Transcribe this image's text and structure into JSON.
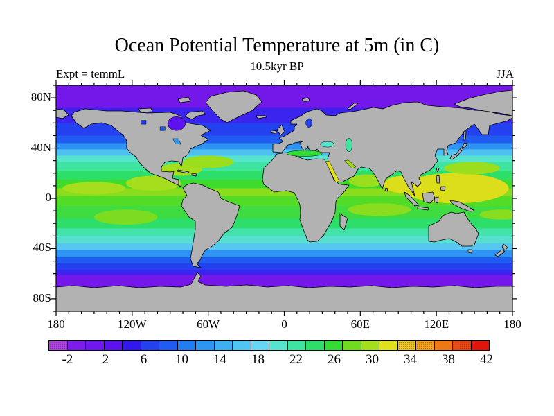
{
  "title": "Ocean Potential Temperature at 5m (in C)",
  "subtitle": "10.5kyr BP",
  "experiment_label": "Expt = temmL",
  "season_label": "JJA",
  "axes": {
    "lon_ticks": [
      {
        "lon": -180,
        "label": "180"
      },
      {
        "lon": -120,
        "label": "120W"
      },
      {
        "lon": -60,
        "label": "60W"
      },
      {
        "lon": 0,
        "label": "0"
      },
      {
        "lon": 60,
        "label": "60E"
      },
      {
        "lon": 120,
        "label": "120E"
      },
      {
        "lon": 180,
        "label": "180"
      }
    ],
    "lat_ticks": [
      {
        "lat": 80,
        "label": "80N"
      },
      {
        "lat": 40,
        "label": "40N"
      },
      {
        "lat": 0,
        "label": "0"
      },
      {
        "lat": -40,
        "label": "40S"
      },
      {
        "lat": -80,
        "label": "80S"
      }
    ],
    "minor_tick_step_deg": 10,
    "lon_major_step_deg": 60,
    "lat_major_step_deg": 40
  },
  "colorbar": {
    "labels": [
      "-2",
      "2",
      "6",
      "10",
      "14",
      "18",
      "22",
      "26",
      "30",
      "34",
      "38",
      "42"
    ],
    "cell_colors": [
      "#AC46DC",
      "#7E1CEC",
      "#6F17EE",
      "#5C12EE",
      "#3318EE",
      "#2441F0",
      "#215CF2",
      "#237CF2",
      "#2C97F2",
      "#3DAFF2",
      "#50C4F2",
      "#68D6F4",
      "#57E4CE",
      "#3FE4A0",
      "#2EDE6A",
      "#32DC32",
      "#6FDC1E",
      "#A5DE1C",
      "#E0E01C",
      "#EAC32A",
      "#F0A01E",
      "#F07814",
      "#E84814",
      "#E0150C"
    ],
    "dither_cells": [
      0,
      19,
      20,
      22
    ],
    "cell_width_c": 2,
    "range_c": [
      -4,
      44
    ]
  },
  "chart_data": {
    "type": "heatmap",
    "title": "Ocean Potential Temperature at 5m (in C)",
    "subtitle": "10.5kyr BP",
    "experiment": "temmL",
    "season": "JJA",
    "units": "C",
    "projection": "equirectangular",
    "lon_range": [
      -180,
      180
    ],
    "lat_range": [
      -90,
      90
    ],
    "contour_interval_c": 2,
    "colorbar_tick_values_c": [
      -2,
      2,
      6,
      10,
      14,
      18,
      22,
      26,
      30,
      34,
      38,
      42
    ],
    "land_color": "#B2B2B2",
    "coast_color": "#000000",
    "zonal_bands": [
      {
        "lat_from": 90,
        "lat_to": 72,
        "color": "#7418EA",
        "approx_temp_c": -1
      },
      {
        "lat_from": 72,
        "lat_to": 60,
        "color": "#3A24EE",
        "approx_temp_c": 2
      },
      {
        "lat_from": 60,
        "lat_to": 50,
        "color": "#2441F0",
        "approx_temp_c": 6
      },
      {
        "lat_from": 50,
        "lat_to": 44,
        "color": "#215CF2",
        "approx_temp_c": 9
      },
      {
        "lat_from": 44,
        "lat_to": 39,
        "color": "#2E93F2",
        "approx_temp_c": 13
      },
      {
        "lat_from": 39,
        "lat_to": 34,
        "color": "#4FC0F2",
        "approx_temp_c": 17
      },
      {
        "lat_from": 34,
        "lat_to": 29,
        "color": "#57E4CE",
        "approx_temp_c": 21
      },
      {
        "lat_from": 29,
        "lat_to": 22,
        "color": "#3FE4A0",
        "approx_temp_c": 23
      },
      {
        "lat_from": 22,
        "lat_to": 15,
        "color": "#2EDE6A",
        "approx_temp_c": 25
      },
      {
        "lat_from": 15,
        "lat_to": 8,
        "color": "#3FDC2E",
        "approx_temp_c": 27
      },
      {
        "lat_from": 8,
        "lat_to": 2,
        "color": "#8CDC1E",
        "approx_temp_c": 29
      },
      {
        "lat_from": 2,
        "lat_to": -6,
        "color": "#52DC28",
        "approx_temp_c": 27
      },
      {
        "lat_from": -6,
        "lat_to": -16,
        "color": "#3EDC40",
        "approx_temp_c": 26
      },
      {
        "lat_from": -16,
        "lat_to": -24,
        "color": "#2EDE6A",
        "approx_temp_c": 24
      },
      {
        "lat_from": -24,
        "lat_to": -30,
        "color": "#42E2AA",
        "approx_temp_c": 21
      },
      {
        "lat_from": -30,
        "lat_to": -36,
        "color": "#57E0D0",
        "approx_temp_c": 19
      },
      {
        "lat_from": -36,
        "lat_to": -41,
        "color": "#58C6F2",
        "approx_temp_c": 15
      },
      {
        "lat_from": -41,
        "lat_to": -47,
        "color": "#2E93F2",
        "approx_temp_c": 11
      },
      {
        "lat_from": -47,
        "lat_to": -52,
        "color": "#215CF2",
        "approx_temp_c": 7
      },
      {
        "lat_from": -52,
        "lat_to": -57,
        "color": "#2441F0",
        "approx_temp_c": 4
      },
      {
        "lat_from": -57,
        "lat_to": -61,
        "color": "#3A24EE",
        "approx_temp_c": 1
      },
      {
        "lat_from": -61,
        "lat_to": -90,
        "color": "#7418EA",
        "approx_temp_c": -1
      }
    ],
    "warm_patches": [
      {
        "name": "west-pacific-warm-pool",
        "lon": 135,
        "lat": 8,
        "rlon": 42,
        "rlat": 12,
        "color": "#DCDE1C",
        "approx_temp_c": 31
      },
      {
        "name": "bay-of-bengal",
        "lon": 95,
        "lat": 11,
        "rlon": 17,
        "rlat": 7,
        "color": "#DCDE1C",
        "approx_temp_c": 31
      },
      {
        "name": "caribbean-gulf",
        "lon": -82,
        "lat": 23,
        "rlon": 17,
        "rlat": 5,
        "color": "#A5DE1C",
        "approx_temp_c": 29
      },
      {
        "name": "east-pacific-mexico",
        "lon": -103,
        "lat": 12,
        "rlon": 22,
        "rlat": 6,
        "color": "#A5DE1C",
        "approx_temp_c": 29
      },
      {
        "name": "sargasso-gyre",
        "lon": -60,
        "lat": 29,
        "rlon": 20,
        "rlat": 5,
        "color": "#9ADE1E",
        "approx_temp_c": 28
      },
      {
        "name": "nw-pacific-gyre",
        "lon": 148,
        "lat": 24,
        "rlon": 22,
        "rlat": 5,
        "color": "#9ADE1E",
        "approx_temp_c": 28
      },
      {
        "name": "arabian-sea",
        "lon": 65,
        "lat": 14,
        "rlon": 14,
        "rlat": 5,
        "color": "#9ADE1E",
        "approx_temp_c": 28
      },
      {
        "name": "central-pacific-itcz",
        "lon": -150,
        "lat": 8,
        "rlon": 25,
        "rlat": 5,
        "color": "#A5DE1C",
        "approx_temp_c": 28
      },
      {
        "name": "south-indian",
        "lon": 75,
        "lat": -9,
        "rlon": 25,
        "rlat": 5,
        "color": "#8ADC1E",
        "approx_temp_c": 28
      },
      {
        "name": "sw-pacific",
        "lon": 172,
        "lat": -13,
        "rlon": 18,
        "rlat": 4,
        "color": "#8ADC1E",
        "approx_temp_c": 27
      },
      {
        "name": "south-pacific-gyre",
        "lon": -125,
        "lat": -15,
        "rlon": 25,
        "rlat": 6,
        "color": "#7CDC20",
        "approx_temp_c": 26
      }
    ],
    "marginal_seas": [
      {
        "name": "hudson-bay",
        "shape": "ellipse",
        "lon": -85,
        "lat": 59.5,
        "rlon": 7,
        "rlat": 5.5,
        "color": "#5C12EE",
        "approx_temp_c": 0
      },
      {
        "name": "canadian-lake-1",
        "shape": "poly",
        "pts": [
          [
            -113,
            62
          ],
          [
            -109,
            62
          ],
          [
            -109,
            59
          ],
          [
            -113,
            59
          ]
        ],
        "color": "#2441F0",
        "approx_temp_c": 5
      },
      {
        "name": "canadian-lake-2",
        "shape": "poly",
        "pts": [
          [
            -98,
            57
          ],
          [
            -94,
            57
          ],
          [
            -94,
            54
          ],
          [
            -98,
            54
          ]
        ],
        "color": "#215CF2",
        "approx_temp_c": 7
      },
      {
        "name": "great-lakes",
        "shape": "poly",
        "pts": [
          [
            -88,
            47.5
          ],
          [
            -83.5,
            47.5
          ],
          [
            -81.5,
            43
          ],
          [
            -86,
            43.5
          ]
        ],
        "color": "#2C97F2",
        "approx_temp_c": 12
      },
      {
        "name": "baltic-sea",
        "shape": "ellipse",
        "lon": 19.5,
        "lat": 60,
        "rlon": 2.5,
        "rlat": 3.5,
        "color": "#2441F0",
        "approx_temp_c": 6
      },
      {
        "name": "mediterranean",
        "shape": "ellipse",
        "lon": 16,
        "lat": 35.8,
        "rlon": 14,
        "rlat": 2.4,
        "color": "#32DC32",
        "approx_temp_c": 22
      },
      {
        "name": "black-sea",
        "shape": "ellipse",
        "lon": 34,
        "lat": 43,
        "rlon": 5.5,
        "rlat": 2.2,
        "color": "#57E4CE",
        "approx_temp_c": 18
      },
      {
        "name": "caspian-sea",
        "shape": "ellipse",
        "lon": 51,
        "lat": 42.5,
        "rlon": 2.6,
        "rlat": 5.5,
        "color": "#3FE4A0",
        "approx_temp_c": 21
      },
      {
        "name": "red-sea",
        "shape": "poly",
        "pts": [
          [
            32.5,
            29.5
          ],
          [
            35.5,
            29.5
          ],
          [
            43.5,
            13.5
          ],
          [
            40.5,
            13
          ]
        ],
        "color": "#E0E01C",
        "approx_temp_c": 32
      },
      {
        "name": "persian-gulf",
        "shape": "poly",
        "pts": [
          [
            47.5,
            30
          ],
          [
            50.5,
            30.5
          ],
          [
            56.5,
            25
          ],
          [
            53.5,
            23.8
          ]
        ],
        "color": "#A5DE1C",
        "approx_temp_c": 30
      }
    ]
  }
}
